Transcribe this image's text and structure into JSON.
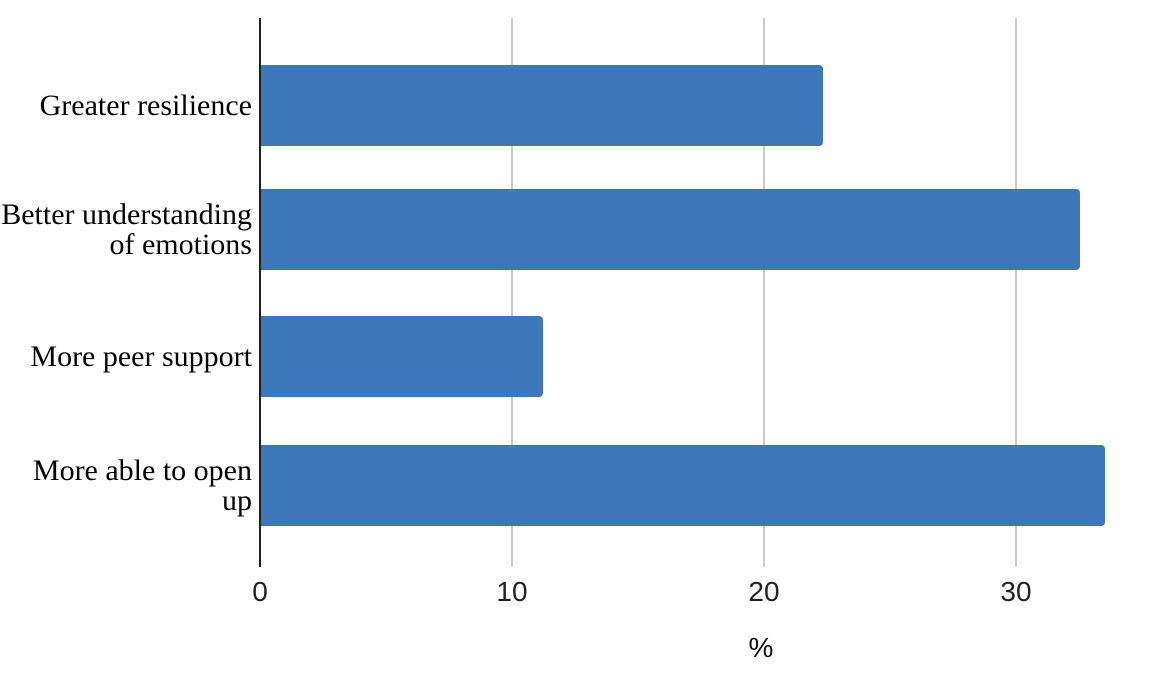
{
  "chart_data": {
    "type": "bar",
    "orientation": "horizontal",
    "title": "",
    "xlabel": "%",
    "ylabel": "",
    "categories": [
      "Greater resilience",
      "Better understanding of emotions",
      "More peer support",
      "More able to open up"
    ],
    "values": [
      22.3,
      32.5,
      11.2,
      33.5
    ],
    "x_ticks": [
      0,
      10,
      20,
      30
    ],
    "x_tick_labels": [
      "0",
      "10",
      "20",
      "30"
    ],
    "xlim": [
      0,
      35.9
    ],
    "grid": "vertical-gridlines-on",
    "legend_position": "none",
    "bar_color": "#3d76b9"
  },
  "colors": {
    "bar": "#3d76b9",
    "gridline": "#cbcbcb",
    "axis_line": "#1f1f1f",
    "text": "#000000",
    "background": "#ffffff"
  }
}
